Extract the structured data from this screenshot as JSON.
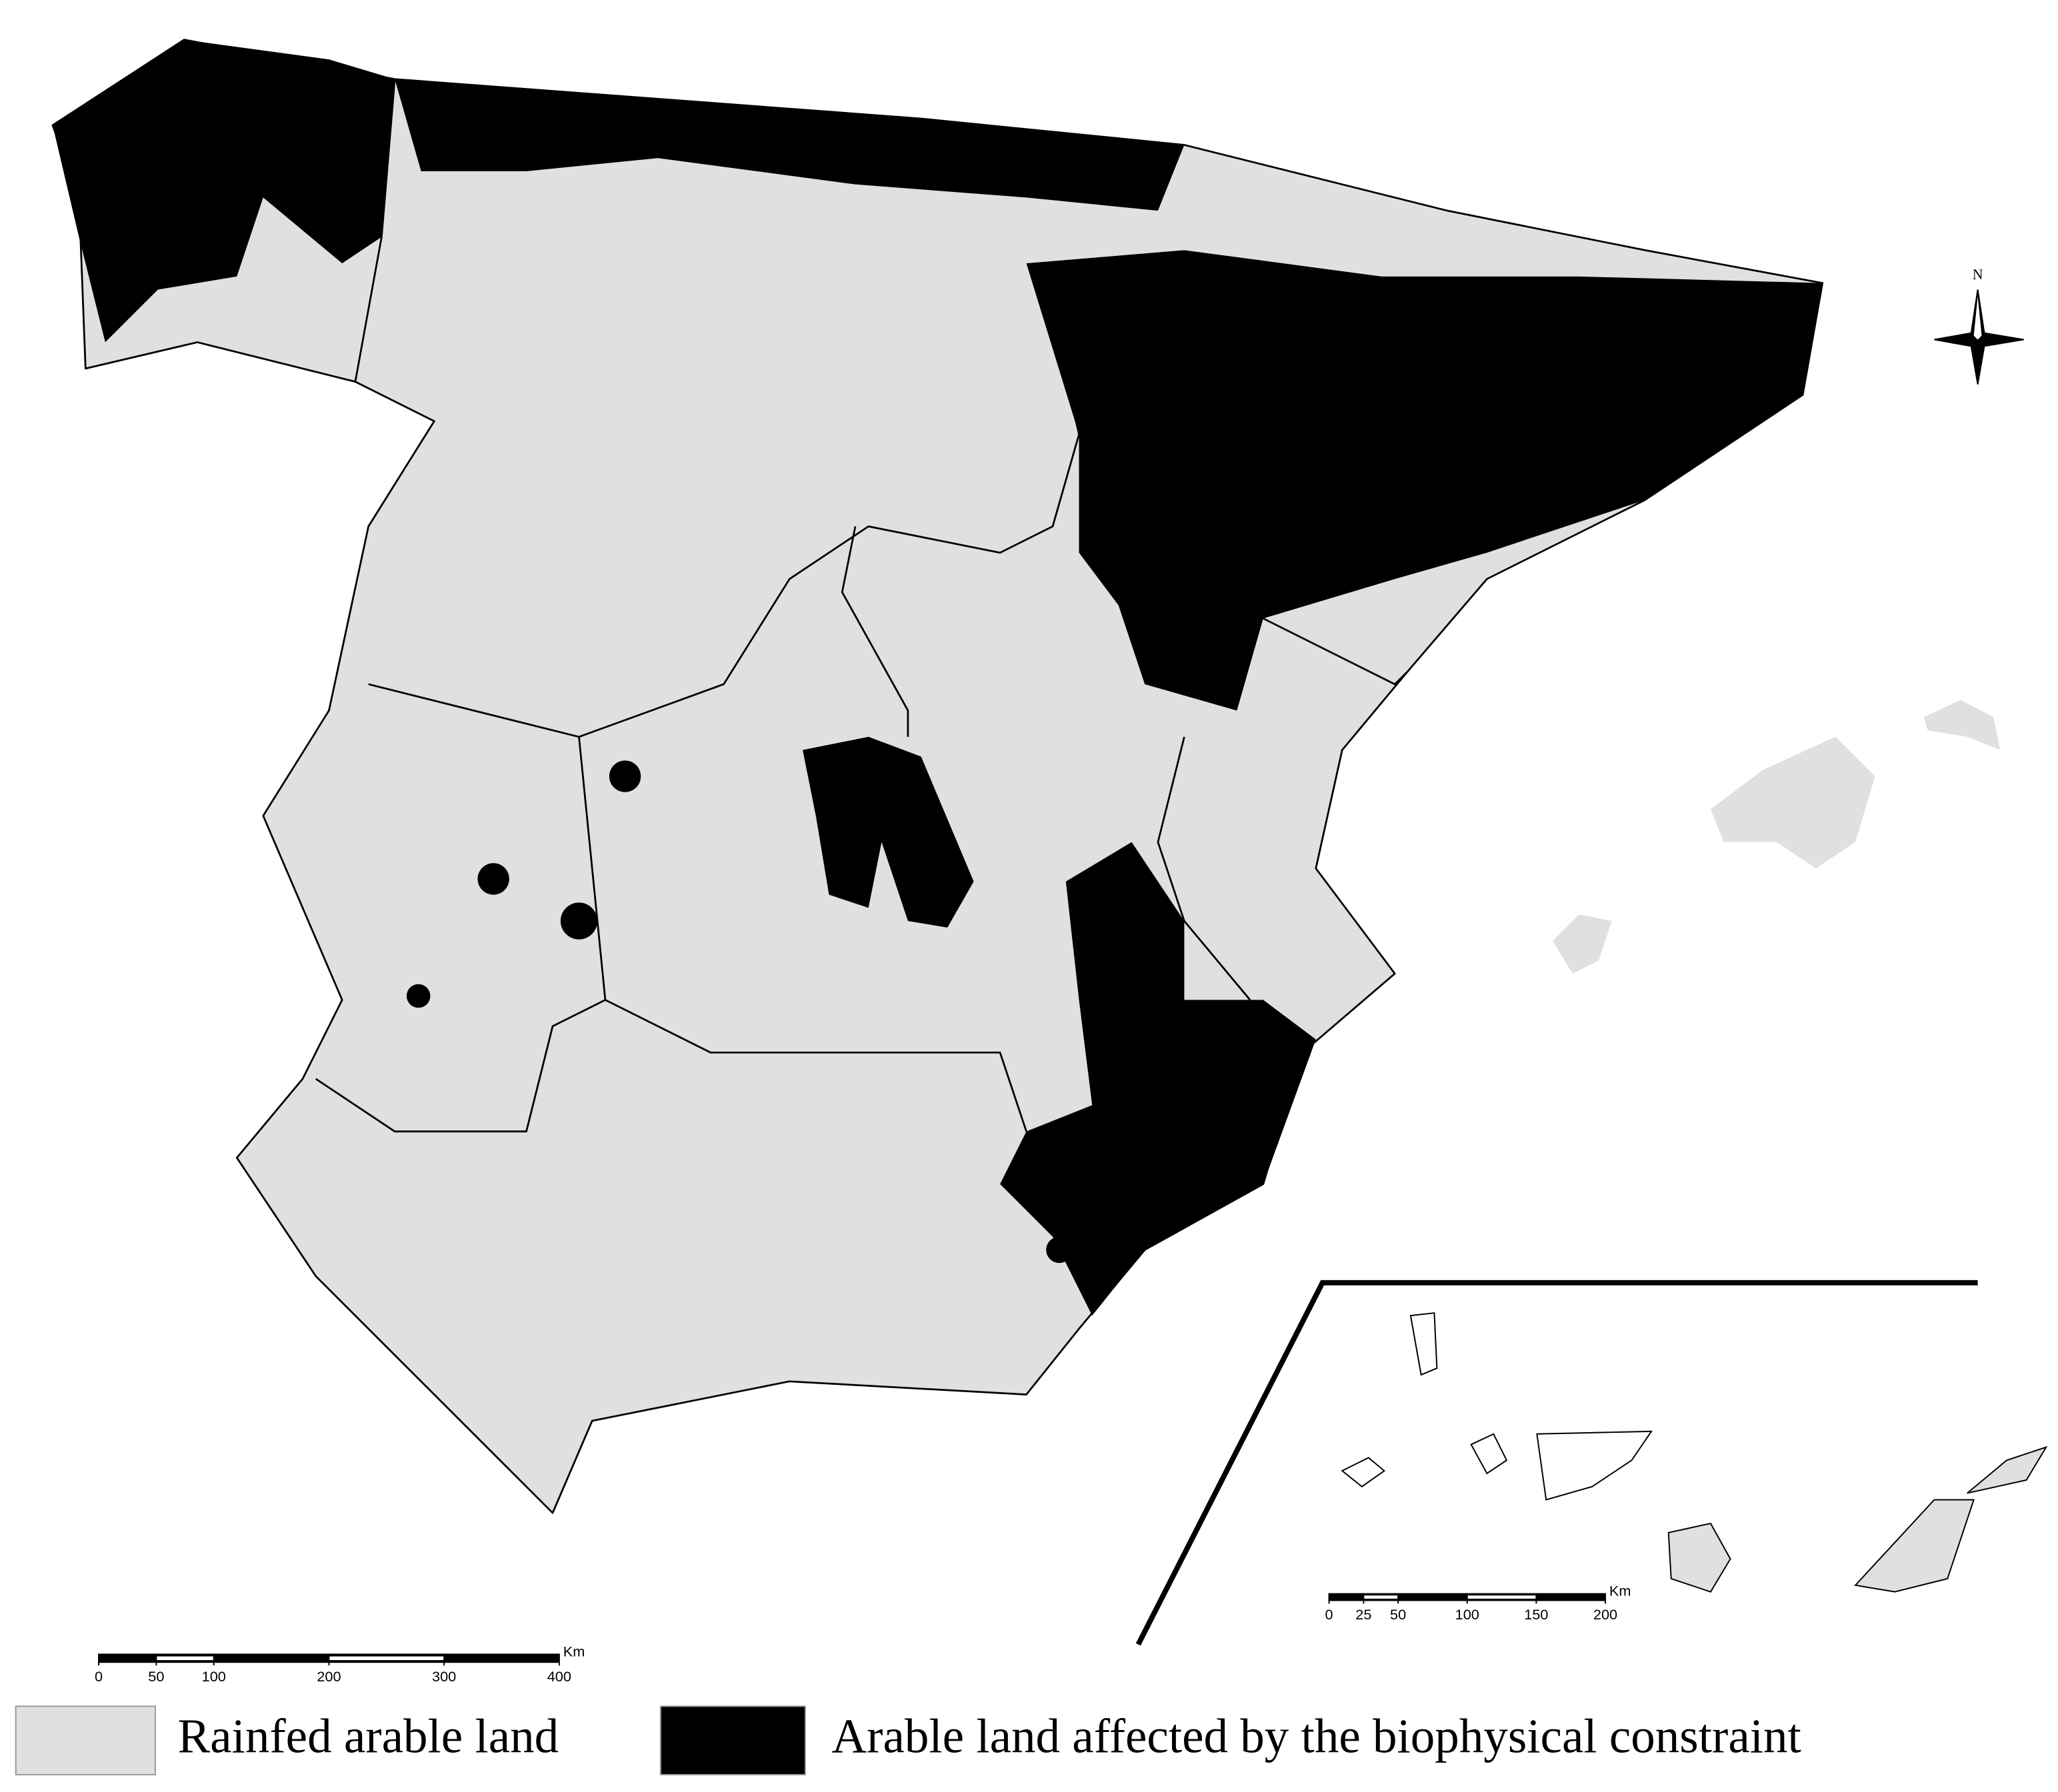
{
  "map": {
    "compass": "N",
    "scale_bar": {
      "unit": "Km",
      "ticks": [
        0,
        50,
        100,
        200,
        300,
        400
      ]
    },
    "inset_scale_bar": {
      "unit": "Km",
      "ticks": [
        0,
        25,
        50,
        100,
        150,
        200
      ]
    },
    "legend": [
      {
        "label": "Rainfed arable land",
        "color": "#e0e0e0"
      },
      {
        "label": "Arable land affected by the biophysical constraint",
        "color": "#000000"
      }
    ]
  }
}
